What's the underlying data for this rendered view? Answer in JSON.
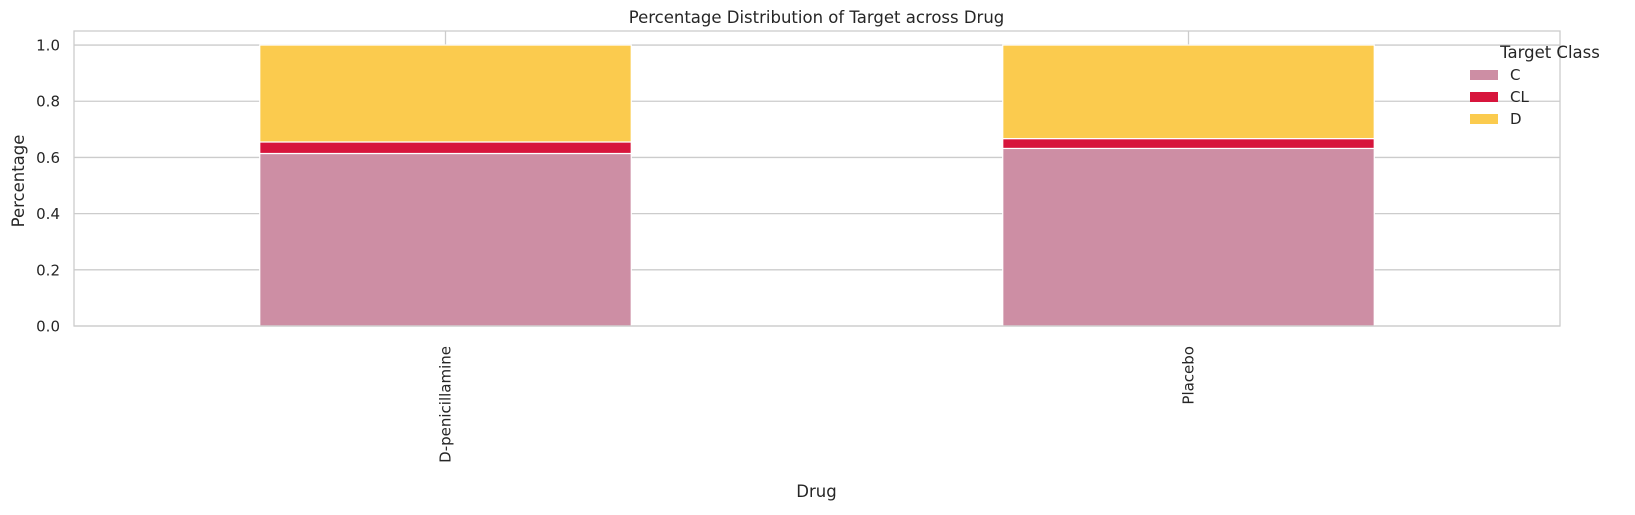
{
  "chart_data": {
    "type": "bar",
    "stacked": true,
    "title": "Percentage Distribution of Target across Drug",
    "xlabel": "Drug",
    "ylabel": "Percentage",
    "categories": [
      "D-penicillamine",
      "Placebo"
    ],
    "series": [
      {
        "name": "C",
        "color": "#cd8ea4",
        "values": [
          0.614,
          0.632
        ]
      },
      {
        "name": "CL",
        "color": "#d7153c",
        "values": [
          0.041,
          0.035
        ]
      },
      {
        "name": "D",
        "color": "#fbcb4e",
        "values": [
          0.345,
          0.333
        ]
      }
    ],
    "ylim": [
      0,
      1.05
    ],
    "yticks": [
      "0.0",
      "0.2",
      "0.4",
      "0.6",
      "0.8",
      "1.0"
    ],
    "grid": true,
    "legend": {
      "title": "Target Class",
      "placement": "top-right"
    }
  }
}
